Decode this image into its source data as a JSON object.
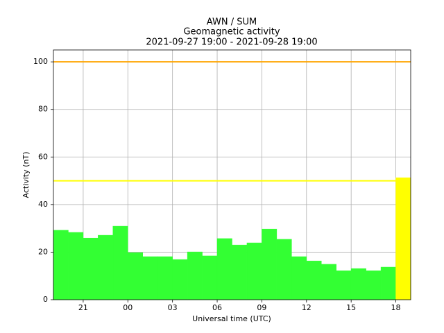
{
  "chart_data": {
    "type": "bar",
    "title": [
      "AWN / SUM",
      "Geomagnetic activity",
      "2021-09-27 19:00 - 2021-09-28 19:00"
    ],
    "x_label": "Universal time (UTC)",
    "y_label": "Activity (nT)",
    "x": [
      19,
      20,
      21,
      22,
      23,
      24,
      25,
      26,
      27,
      28,
      29,
      30,
      31,
      32,
      33,
      34,
      35,
      36,
      37,
      38,
      39,
      40,
      41,
      42
    ],
    "values": [
      29.2,
      28.3,
      25.9,
      27.1,
      30.9,
      19.8,
      18.1,
      18.1,
      16.9,
      20.1,
      18.4,
      25.7,
      23.0,
      23.9,
      29.7,
      25.4,
      18.1,
      16.3,
      14.9,
      12.2,
      13.1,
      12.2,
      13.7,
      51.3
    ],
    "colors": [
      "#33ff33",
      "#33ff33",
      "#33ff33",
      "#33ff33",
      "#33ff33",
      "#33ff33",
      "#33ff33",
      "#33ff33",
      "#33ff33",
      "#33ff33",
      "#33ff33",
      "#33ff33",
      "#33ff33",
      "#33ff33",
      "#33ff33",
      "#33ff33",
      "#33ff33",
      "#33ff33",
      "#33ff33",
      "#33ff33",
      "#33ff33",
      "#33ff33",
      "#33ff33",
      "#ffff00"
    ],
    "xlim": [
      19,
      43
    ],
    "xticks": [
      21,
      {
        "value": 24,
        "label": "00"
      },
      {
        "value": 27,
        "label": "03"
      },
      {
        "value": 30,
        "label": "06"
      },
      {
        "value": 33,
        "label": "09"
      },
      {
        "value": 36,
        "label": "12"
      },
      {
        "value": 39,
        "label": "15"
      },
      {
        "value": 42,
        "label": "18"
      }
    ],
    "ylim": [
      0,
      105
    ],
    "yticks": [
      0,
      20,
      40,
      60,
      80,
      100
    ],
    "grid": true,
    "hlines": [
      {
        "value": 50,
        "color": "#ffff00"
      },
      {
        "value": 100,
        "color": "#ffa500"
      }
    ]
  }
}
